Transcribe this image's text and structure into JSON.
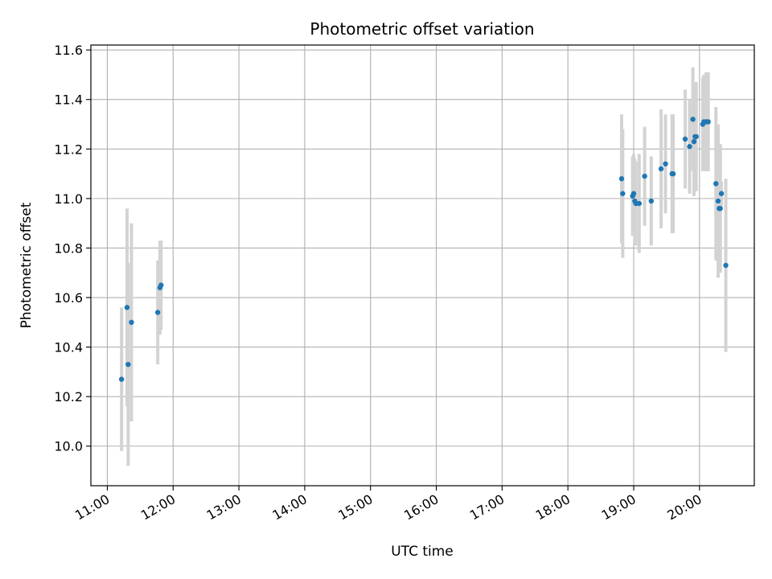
{
  "chart_data": {
    "type": "scatter",
    "title": "Photometric offset variation",
    "xlabel": "UTC time",
    "ylabel": "Photometric offset",
    "x_tick_labels": [
      "11:00",
      "12:00",
      "13:00",
      "14:00",
      "15:00",
      "16:00",
      "17:00",
      "18:00",
      "19:00",
      "20:00"
    ],
    "y_tick_labels": [
      "10.0",
      "10.2",
      "10.4",
      "10.6",
      "10.8",
      "11.0",
      "11.2",
      "11.4",
      "11.6"
    ],
    "xlim": [
      "10:45",
      "20:50"
    ],
    "ylim": [
      9.84,
      11.62
    ],
    "grid": true,
    "legend": "none",
    "colors": {
      "point": "#1f77b4",
      "errorbar": "#d3d3d3",
      "grid": "#b0b0b0",
      "axes": "#000000"
    },
    "series": [
      {
        "x": [
          "11:13",
          "11:18",
          "11:19",
          "11:22",
          "11:46",
          "11:48",
          "11:49",
          "18:49",
          "18:50",
          "18:59",
          "19:00",
          "19:01",
          "19:02",
          "19:05",
          "19:10",
          "19:16",
          "19:25",
          "19:29",
          "19:35",
          "19:36",
          "19:47",
          "19:51",
          "19:54",
          "19:55",
          "19:56",
          "19:57",
          "20:03",
          "20:04",
          "20:06",
          "20:08",
          "20:15",
          "20:17",
          "20:18",
          "20:19",
          "20:20",
          "20:24"
        ],
        "y": [
          10.27,
          10.56,
          10.33,
          10.5,
          10.54,
          10.64,
          10.65,
          11.08,
          11.02,
          11.01,
          11.02,
          10.99,
          10.98,
          10.98,
          11.09,
          10.99,
          11.12,
          11.14,
          11.1,
          11.1,
          11.24,
          11.21,
          11.32,
          11.23,
          11.25,
          11.25,
          11.3,
          11.31,
          11.31,
          11.31,
          11.06,
          10.99,
          10.96,
          10.96,
          11.02,
          10.73
        ],
        "yerr": [
          0.29,
          0.4,
          0.41,
          0.4,
          0.21,
          0.19,
          0.18,
          0.26,
          0.26,
          0.16,
          0.16,
          0.17,
          0.17,
          0.2,
          0.2,
          0.18,
          0.24,
          0.2,
          0.24,
          0.24,
          0.2,
          0.19,
          0.21,
          0.22,
          0.22,
          0.22,
          0.19,
          0.19,
          0.2,
          0.2,
          0.31,
          0.31,
          0.26,
          0.26,
          0.05,
          0.35
        ]
      }
    ]
  }
}
